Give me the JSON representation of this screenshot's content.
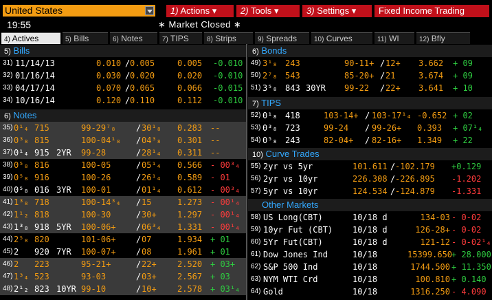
{
  "topbar": {
    "country": "United States",
    "menus": [
      {
        "num": "1)",
        "label": "Actions",
        "arrow": "▾"
      },
      {
        "num": "2)",
        "label": "Tools",
        "arrow": "▾"
      },
      {
        "num": "3)",
        "label": "Settings",
        "arrow": "▾"
      },
      {
        "num": "",
        "label": "Fixed Income Trading",
        "arrow": ""
      }
    ]
  },
  "status": {
    "time": "19:55",
    "market": "∗ Market Closed ∗"
  },
  "tabs": [
    {
      "num": "4)",
      "label": "Actives",
      "active": true
    },
    {
      "num": "5)",
      "label": "Bills",
      "active": false
    },
    {
      "num": "6)",
      "label": "Notes",
      "active": false
    },
    {
      "num": "7)",
      "label": "TIPS",
      "active": false
    },
    {
      "num": "8)",
      "label": "Strips",
      "active": false
    },
    {
      "num": "9)",
      "label": "Spreads",
      "active": false
    },
    {
      "num": "10)",
      "label": "Curves",
      "active": false
    },
    {
      "num": "11)",
      "label": "WI",
      "active": false
    },
    {
      "num": "12)",
      "label": "Bfly",
      "active": false
    }
  ],
  "bills": {
    "num": "5)",
    "title": "Bills",
    "rows": [
      {
        "n": "31)",
        "date": "11/14/13",
        "bid": "0.010",
        "ask": "0.005",
        "yld": "0.005",
        "chg": "-0.010"
      },
      {
        "n": "32)",
        "date": "01/16/14",
        "bid": "0.030",
        "ask": "0.020",
        "yld": "0.020",
        "chg": "-0.010"
      },
      {
        "n": "33)",
        "date": "04/17/14",
        "bid": "0.070",
        "ask": "0.065",
        "yld": "0.066",
        "chg": "-0.015"
      },
      {
        "n": "34)",
        "date": "10/16/14",
        "bid": "0.120",
        "ask": "0.110",
        "yld": "0.112",
        "chg": "-0.010"
      }
    ]
  },
  "notes": {
    "num": "6)",
    "title": "Notes",
    "rows": [
      {
        "n": "35)",
        "cpn": "0¹₄",
        "mat": "715",
        "tag": "",
        "bid": "99-29⁷₈",
        "ask": "30¹₈",
        "yld": "0.283",
        "chg": "--",
        "chgColor": "#f39c12",
        "hl": true
      },
      {
        "n": "36)",
        "cpn": "0³₈",
        "mat": "815",
        "tag": "",
        "bid": "100-04¹₈",
        "ask": "04³₈",
        "yld": "0.301",
        "chg": "--",
        "chgColor": "#f39c12",
        "hl": true
      },
      {
        "n": "37)",
        "cpn": "0¹₄",
        "mat": "915",
        "tag": "2YR",
        "bid": "99-28",
        "ask": "28¹₄",
        "yld": "0.311",
        "chg": "--",
        "chgColor": "#f39c12",
        "hl": true
      },
      {
        "n": "38)",
        "cpn": "0⁵₈",
        "mat": "816",
        "tag": "",
        "bid": "100-05",
        "ask": "05¹₄",
        "yld": "0.566",
        "chg": "- 00³₄",
        "chgColor": "#ff3b3b",
        "hl": false
      },
      {
        "n": "39)",
        "cpn": "0⁵₈",
        "mat": "916",
        "tag": "",
        "bid": "100-26",
        "ask": "26¹₄",
        "yld": "0.589",
        "chg": "- 01",
        "chgColor": "#ff3b3b",
        "hl": false
      },
      {
        "n": "40)",
        "cpn": "0⁵₈",
        "mat": "016",
        "tag": "3YR",
        "bid": "100-01",
        "ask": "01¹₄",
        "yld": "0.612",
        "chg": "- 00³₄",
        "chgColor": "#ff3b3b",
        "hl": false
      },
      {
        "n": "41)",
        "cpn": "1³₈",
        "mat": "718",
        "tag": "",
        "bid": "100-14³₄",
        "ask": "15",
        "yld": "1.273",
        "chg": "- 00¹₄",
        "chgColor": "#ff3b3b",
        "hl": true
      },
      {
        "n": "42)",
        "cpn": "1¹₂",
        "mat": "818",
        "tag": "",
        "bid": "100-30",
        "ask": "30+",
        "yld": "1.297",
        "chg": "- 00¹₄",
        "chgColor": "#ff3b3b",
        "hl": true
      },
      {
        "n": "43)",
        "cpn": "1³₈",
        "mat": "918",
        "tag": "5YR",
        "bid": "100-06+",
        "ask": "06³₄",
        "yld": "1.331",
        "chg": "- 00¹₄",
        "chgColor": "#ff3b3b",
        "hl": true
      },
      {
        "n": "44)",
        "cpn": "2⁵₈",
        "mat": "820",
        "tag": "",
        "bid": "101-06+",
        "ask": "07",
        "yld": "1.934",
        "chg": "+ 01",
        "chgColor": "#2ecc40",
        "hl": false
      },
      {
        "n": "45)",
        "cpn": "2",
        "mat": "920",
        "tag": "7YR",
        "bid": "100-07+",
        "ask": "08",
        "yld": "1.961",
        "chg": "+ 01",
        "chgColor": "#2ecc40",
        "hl": false
      },
      {
        "n": "46)",
        "cpn": "2",
        "mat": "223",
        "tag": "",
        "bid": "95-21+",
        "ask": "22+",
        "yld": "2.520",
        "chg": "+ 03+",
        "chgColor": "#2ecc40",
        "hl": true
      },
      {
        "n": "47)",
        "cpn": "1³₄",
        "mat": "523",
        "tag": "",
        "bid": "93-03",
        "ask": "03+",
        "yld": "2.567",
        "chg": "+ 03",
        "chgColor": "#2ecc40",
        "hl": true
      },
      {
        "n": "48)",
        "cpn": "2¹₂",
        "mat": "823",
        "tag": "10YR",
        "bid": "99-10",
        "ask": "10+",
        "yld": "2.578",
        "chg": "+ 03¹₄",
        "chgColor": "#2ecc40",
        "hl": true
      }
    ]
  },
  "bonds": {
    "num": "6)",
    "title": "Bonds",
    "rows": [
      {
        "n": "49)",
        "cpn": "3¹₈",
        "mat": "243",
        "tag": "",
        "bid": "90-11+",
        "ask": "12+",
        "yld": "3.662",
        "chg": "+ 09"
      },
      {
        "n": "50)",
        "cpn": "2⁷₈",
        "mat": "543",
        "tag": "",
        "bid": "85-20+",
        "ask": "21",
        "yld": "3.674",
        "chg": "+ 09"
      },
      {
        "n": "51)",
        "cpn": "3⁵₈",
        "mat": "843",
        "tag": "30YR",
        "bid": "99-22",
        "ask": "22+",
        "yld": "3.641",
        "chg": "+ 10"
      }
    ]
  },
  "tips": {
    "num": "7)",
    "title": "TIPS",
    "rows": [
      {
        "n": "52)",
        "cpn": "0¹₈",
        "mat": "418",
        "bid": "103-14+",
        "ask": "103-17¹₄",
        "yld": "-0.652",
        "chg": "+ 02"
      },
      {
        "n": "53)",
        "cpn": "0³₈",
        "mat": "723",
        "bid": "99-24",
        "ask": "99-26+",
        "yld": "0.393",
        "chg": "+ 07¹₄"
      },
      {
        "n": "54)",
        "cpn": "0⁵₈",
        "mat": "243",
        "bid": "82-04+",
        "ask": "82-16+",
        "yld": "1.349",
        "chg": "+ 22"
      }
    ]
  },
  "curves": {
    "num": "10)",
    "title": "Curve Trades",
    "rows": [
      {
        "n": "55)",
        "label": "2yr vs 5yr",
        "bid": "101.611",
        "ask": "-102.179",
        "chg": "+0.129",
        "chgColor": "#2ecc40"
      },
      {
        "n": "56)",
        "label": "2yr vs 10yr",
        "bid": "226.308",
        "ask": "-226.895",
        "chg": "-1.202",
        "chgColor": "#ff3b3b"
      },
      {
        "n": "57)",
        "label": "5yr vs 10yr",
        "bid": "124.534",
        "ask": "-124.879",
        "chg": "-1.331",
        "chgColor": "#ff3b3b"
      }
    ]
  },
  "other": {
    "title": "Other Markets",
    "rows": [
      {
        "n": "58)",
        "label": "US Long(CBT)",
        "date": "10/18 d",
        "px": "134-03",
        "chg": "-  0-02",
        "chgColor": "#ff3b3b"
      },
      {
        "n": "59)",
        "label": "10yr Fut (CBT)",
        "date": "10/18 d",
        "px": "126-28+",
        "chg": "-  0-02",
        "chgColor": "#ff3b3b"
      },
      {
        "n": "60)",
        "label": "5Yr Fut(CBT)",
        "date": "10/18 d",
        "px": "121-12",
        "chg": "-  0-02¹₄",
        "chgColor": "#ff3b3b"
      },
      {
        "n": "61)",
        "label": "Dow Jones Ind",
        "date": "10/18",
        "px": "15399.650",
        "chg": "+ 28.000",
        "chgColor": "#2ecc40"
      },
      {
        "n": "62)",
        "label": "S&P 500 Ind",
        "date": "10/18",
        "px": "1744.500",
        "chg": "+ 11.350",
        "chgColor": "#2ecc40"
      },
      {
        "n": "63)",
        "label": "NYM WTI Crd",
        "date": "10/18",
        "px": "100.810",
        "chg": "+ 0.140",
        "chgColor": "#2ecc40"
      },
      {
        "n": "64)",
        "label": "Gold",
        "date": "10/18",
        "px": "1316.250",
        "chg": "- 4.090",
        "chgColor": "#ff3b3b"
      }
    ]
  },
  "colors": {
    "amber": "#f39c12",
    "header_blue": "#33a9ff",
    "menu_red": "#c0101a",
    "row_hl": "#3a3a3a"
  }
}
